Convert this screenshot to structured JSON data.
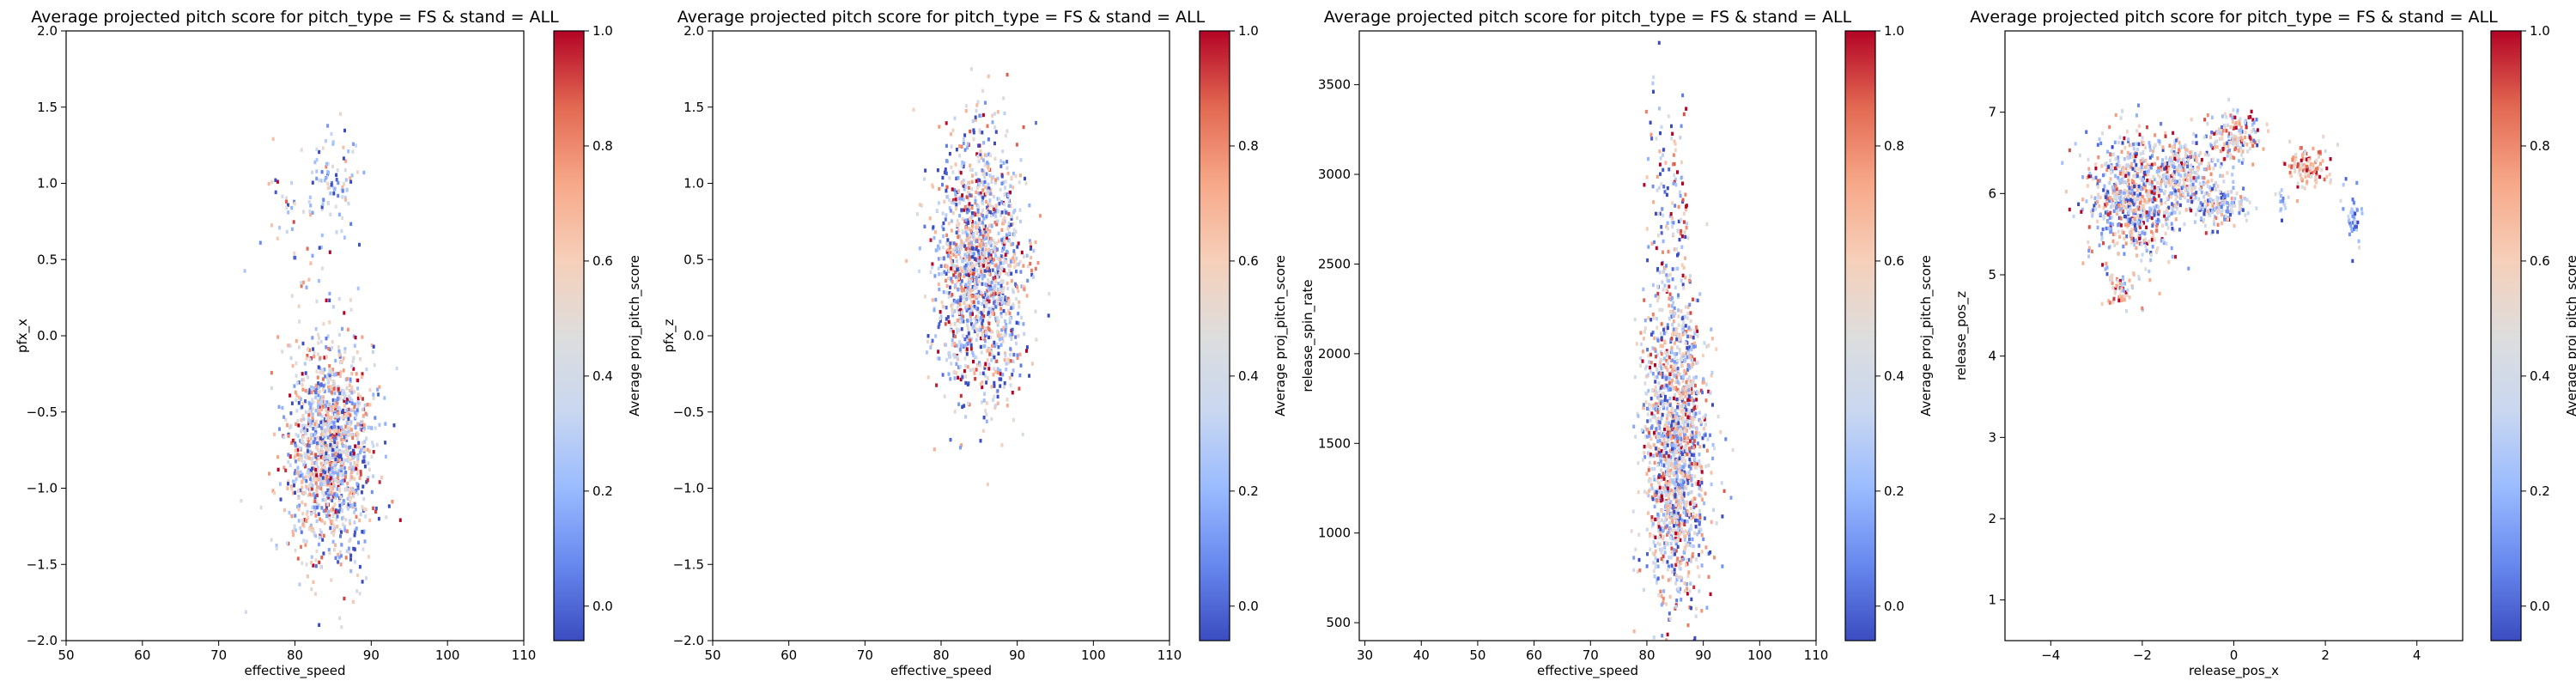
{
  "colorbar": {
    "label": "Average proj_pitch_score",
    "ticks": [
      "0.0",
      "0.2",
      "0.4",
      "0.6",
      "0.8",
      "1.0"
    ],
    "colormap": "coolwarm",
    "colormap_stops": [
      "#3b4cc0",
      "#6788ee",
      "#9abbff",
      "#c9d7f0",
      "#dddddd",
      "#f6cfb9",
      "#f7a889",
      "#e26952",
      "#b40426"
    ]
  },
  "chart_data": [
    {
      "type": "heatmap",
      "title": "Average projected pitch score for pitch_type = FS & stand = ALL",
      "xlabel": "effective_speed",
      "ylabel": "pfx_x",
      "xlim": [
        50,
        110
      ],
      "ylim": [
        -2.0,
        2.0
      ],
      "xticks": [
        50,
        60,
        70,
        80,
        90,
        100,
        110
      ],
      "xtick_labels": [
        "50",
        "60",
        "70",
        "80",
        "90",
        "100",
        "110"
      ],
      "yticks": [
        -2.0,
        -1.5,
        -1.0,
        -0.5,
        0.0,
        0.5,
        1.0,
        1.5,
        2.0
      ],
      "ytick_labels": [
        "−2.0",
        "−1.5",
        "−1.0",
        "−0.5",
        "0.0",
        "0.5",
        "1.0",
        "1.5",
        "2.0"
      ],
      "clusters": [
        {
          "x": 84.5,
          "y": -0.75,
          "sx": 2.8,
          "sy": 0.38,
          "n": 1400,
          "mean_score": 0.46,
          "spread": 0.3
        },
        {
          "x": 85.0,
          "y": 1.0,
          "sx": 1.8,
          "sy": 0.16,
          "n": 90,
          "mean_score": 0.3,
          "spread": 0.22
        },
        {
          "x": 80.0,
          "y": 0.75,
          "sx": 3.0,
          "sy": 0.25,
          "n": 40,
          "mean_score": 0.5,
          "spread": 0.3
        }
      ]
    },
    {
      "type": "heatmap",
      "title": "Average projected pitch score for pitch_type = FS & stand = ALL",
      "xlabel": "effective_speed",
      "ylabel": "pfx_z",
      "xlim": [
        50,
        110
      ],
      "ylim": [
        -2.0,
        2.0
      ],
      "xticks": [
        50,
        60,
        70,
        80,
        90,
        100,
        110
      ],
      "xtick_labels": [
        "50",
        "60",
        "70",
        "80",
        "90",
        "100",
        "110"
      ],
      "yticks": [
        -2.0,
        -1.5,
        -1.0,
        -0.5,
        0.0,
        0.5,
        1.0,
        1.5,
        2.0
      ],
      "ytick_labels": [
        "−2.0",
        "−1.5",
        "−1.0",
        "−0.5",
        "0.0",
        "0.5",
        "1.0",
        "1.5",
        "2.0"
      ],
      "clusters": [
        {
          "x": 85.0,
          "y": 0.45,
          "sx": 2.9,
          "sy": 0.42,
          "n": 1500,
          "mean_score": 0.45,
          "spread": 0.32
        }
      ]
    },
    {
      "type": "heatmap",
      "title": "Average projected pitch score for pitch_type = FS & stand = ALL",
      "xlabel": "effective_speed",
      "ylabel": "release_spin_rate",
      "xlim": [
        29,
        110
      ],
      "ylim": [
        400,
        3800
      ],
      "xticks": [
        30,
        40,
        50,
        60,
        70,
        80,
        90,
        100,
        110
      ],
      "xtick_labels": [
        "30",
        "40",
        "50",
        "60",
        "70",
        "80",
        "90",
        "100",
        "110"
      ],
      "yticks": [
        500,
        1000,
        1500,
        2000,
        2500,
        3000,
        3500
      ],
      "ytick_labels": [
        "500",
        "1000",
        "1500",
        "2000",
        "2500",
        "3000",
        "3500"
      ],
      "clusters": [
        {
          "x": 85.0,
          "y": 1450,
          "sx": 2.8,
          "sy": 420,
          "n": 1500,
          "mean_score": 0.44,
          "spread": 0.3
        },
        {
          "x": 84.0,
          "y": 2700,
          "sx": 2.2,
          "sy": 380,
          "n": 180,
          "mean_score": 0.42,
          "spread": 0.32
        }
      ]
    },
    {
      "type": "heatmap",
      "title": "Average projected pitch score for pitch_type = FS & stand = ALL",
      "xlabel": "release_pos_x",
      "ylabel": "release_pos_z",
      "xlim": [
        -5,
        5
      ],
      "ylim": [
        0.5,
        8
      ],
      "xticks": [
        -4,
        -2,
        0,
        2,
        4
      ],
      "xtick_labels": [
        "−4",
        "−2",
        "0",
        "2",
        "4"
      ],
      "yticks": [
        1,
        2,
        3,
        4,
        5,
        6,
        7
      ],
      "ytick_labels": [
        "1",
        "2",
        "3",
        "4",
        "5",
        "6",
        "7"
      ],
      "clusters": [
        {
          "x": -2.3,
          "y": 5.9,
          "sx": 0.45,
          "sy": 0.38,
          "n": 700,
          "mean_score": 0.44,
          "spread": 0.32
        },
        {
          "x": -1.2,
          "y": 6.2,
          "sx": 0.45,
          "sy": 0.25,
          "n": 350,
          "mean_score": 0.48,
          "spread": 0.3
        },
        {
          "x": -0.3,
          "y": 5.85,
          "sx": 0.3,
          "sy": 0.12,
          "n": 140,
          "mean_score": 0.3,
          "spread": 0.25
        },
        {
          "x": 0.0,
          "y": 6.7,
          "sx": 0.3,
          "sy": 0.18,
          "n": 160,
          "mean_score": 0.55,
          "spread": 0.3
        },
        {
          "x": 1.6,
          "y": 6.3,
          "sx": 0.25,
          "sy": 0.13,
          "n": 120,
          "mean_score": 0.72,
          "spread": 0.18
        },
        {
          "x": -2.5,
          "y": 4.8,
          "sx": 0.2,
          "sy": 0.12,
          "n": 50,
          "mean_score": 0.6,
          "spread": 0.25
        },
        {
          "x": 2.6,
          "y": 5.7,
          "sx": 0.1,
          "sy": 0.2,
          "n": 40,
          "mean_score": 0.2,
          "spread": 0.15
        },
        {
          "x": 1.0,
          "y": 5.85,
          "sx": 0.08,
          "sy": 0.1,
          "n": 15,
          "mean_score": 0.25,
          "spread": 0.2
        }
      ]
    }
  ]
}
